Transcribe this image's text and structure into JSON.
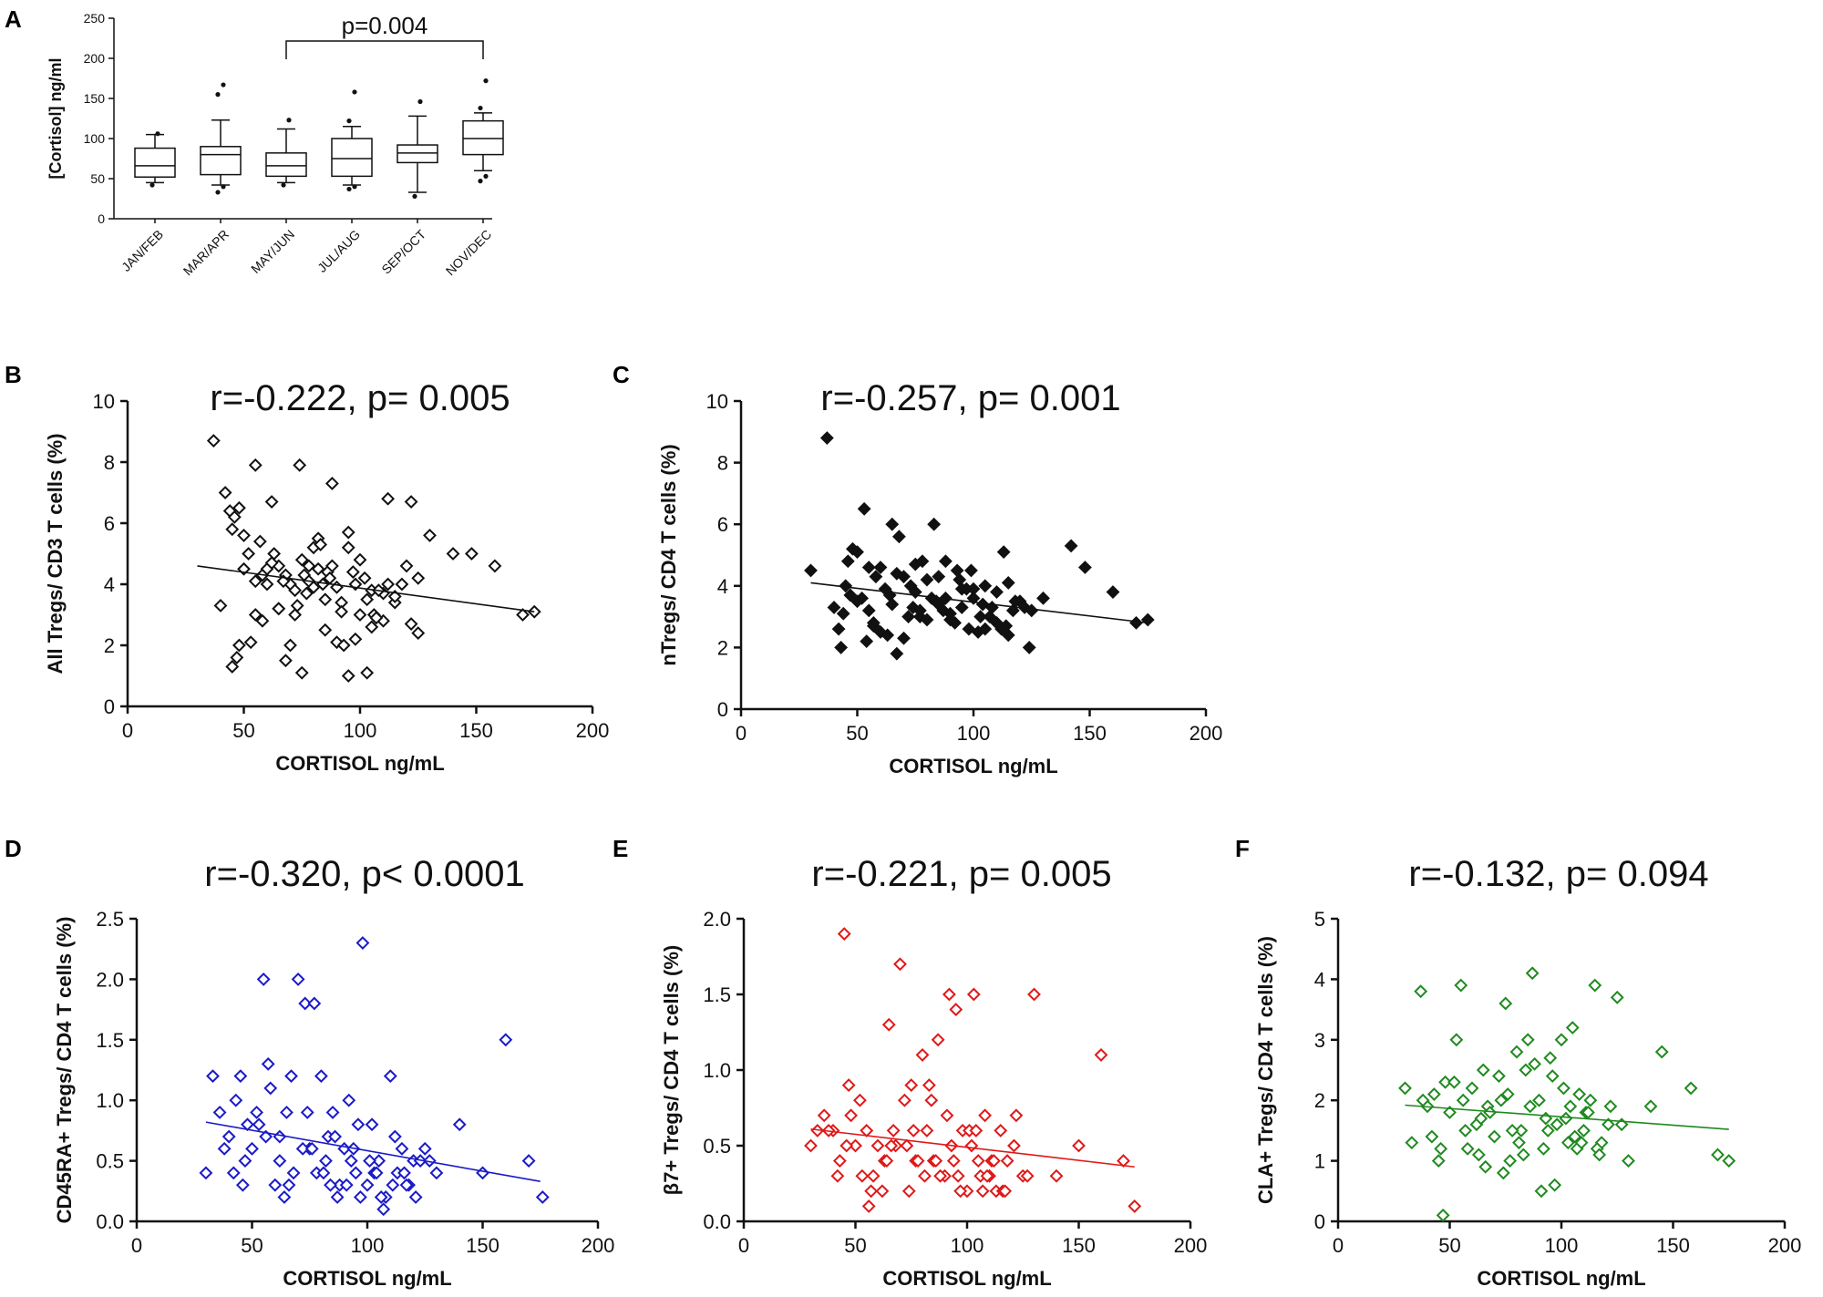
{
  "figure": {
    "panels": [
      "A",
      "B",
      "C",
      "D",
      "E",
      "F"
    ]
  },
  "chart_data": [
    {
      "panel": "A",
      "type": "box",
      "title": "",
      "xlabel": "",
      "ylabel": "[Cortisol] ng/ml",
      "ylim": [
        0,
        250
      ],
      "yticks": [
        0,
        50,
        100,
        150,
        200,
        250
      ],
      "categories": [
        "JAN/FEB",
        "MAR/APR",
        "MAY/JUN",
        "JUL/AUG",
        "SEP/OCT",
        "NOV/DEC"
      ],
      "boxes": [
        {
          "whisker_low": 45,
          "q1": 52,
          "median": 66,
          "q3": 88,
          "whisker_high": 105,
          "outliers": [
            42,
            106
          ]
        },
        {
          "whisker_low": 42,
          "q1": 55,
          "median": 80,
          "q3": 90,
          "whisker_high": 123,
          "outliers": [
            33,
            40,
            155,
            167
          ]
        },
        {
          "whisker_low": 45,
          "q1": 53,
          "median": 66,
          "q3": 82,
          "whisker_high": 112,
          "outliers": [
            42,
            123
          ]
        },
        {
          "whisker_low": 42,
          "q1": 53,
          "median": 75,
          "q3": 100,
          "whisker_high": 115,
          "outliers": [
            37,
            40,
            122,
            158
          ]
        },
        {
          "whisker_low": 33,
          "q1": 70,
          "median": 82,
          "q3": 92,
          "whisker_high": 128,
          "outliers": [
            28,
            146
          ]
        },
        {
          "whisker_low": 60,
          "q1": 80,
          "median": 100,
          "q3": 122,
          "whisker_high": 132,
          "outliers": [
            47,
            53,
            138,
            172
          ]
        }
      ],
      "annotation": {
        "text": "p=0.004",
        "from_category": "MAY/JUN",
        "to_category": "NOV/DEC"
      }
    },
    {
      "panel": "B",
      "type": "scatter",
      "title": "r=-0.222, p= 0.005",
      "xlabel": "CORTISOL ng/mL",
      "ylabel": "All Tregs/ CD3 T cells (%)",
      "xlim": [
        0,
        200
      ],
      "ylim": [
        0,
        10
      ],
      "xticks": [
        0,
        50,
        100,
        150,
        200
      ],
      "yticks": [
        0,
        2,
        4,
        6,
        8,
        10
      ],
      "marker": "open-diamond",
      "color": "#111111",
      "fit": {
        "x": [
          30,
          175
        ],
        "y": [
          4.6,
          3.1
        ]
      },
      "x": [
        37,
        42,
        44,
        46,
        48,
        50,
        52,
        55,
        58,
        60,
        62,
        65,
        68,
        70,
        72,
        74,
        76,
        78,
        80,
        82,
        84,
        86,
        88,
        90,
        92,
        95,
        98,
        100,
        103,
        106,
        110,
        112,
        115,
        118,
        122,
        125,
        130,
        140,
        148,
        158,
        170,
        175,
        45,
        50,
        55,
        60,
        65,
        70,
        75,
        80,
        85,
        90,
        95,
        100,
        105,
        110,
        115,
        120,
        125,
        40,
        47,
        53,
        58,
        63,
        68,
        73,
        78,
        83,
        88,
        93,
        98,
        103,
        108,
        45,
        55,
        65,
        75,
        85,
        95,
        105,
        57,
        67,
        77,
        87,
        97,
        107,
        48,
        62,
        72,
        82,
        92,
        102,
        112,
        122
      ],
      "y": [
        8.7,
        7.0,
        6.4,
        6.2,
        6.5,
        5.6,
        5.0,
        7.9,
        4.3,
        4.0,
        6.7,
        4.6,
        4.3,
        4.0,
        3.8,
        7.9,
        4.3,
        4.1,
        5.2,
        5.5,
        4.0,
        4.4,
        7.3,
        3.9,
        3.4,
        5.2,
        4.0,
        4.8,
        3.5,
        3.0,
        3.7,
        6.8,
        3.4,
        4.0,
        6.7,
        4.2,
        5.6,
        5.0,
        5.0,
        4.6,
        3.0,
        3.1,
        5.8,
        4.5,
        3.0,
        4.5,
        3.2,
        2.0,
        4.8,
        3.9,
        2.5,
        2.1,
        1.0,
        3.0,
        3.8,
        2.8,
        3.6,
        4.6,
        2.4,
        3.3,
        1.6,
        2.1,
        2.8,
        5.0,
        1.5,
        3.3,
        4.6,
        5.3,
        4.6,
        2.0,
        2.2,
        1.1,
        3.8,
        1.3,
        4.1,
        3.2,
        1.1,
        3.5,
        5.7,
        2.6,
        5.4,
        4.1,
        3.7,
        4.2,
        4.4,
        2.9,
        2.0,
        4.7,
        3.0,
        4.5,
        3.1,
        4.2,
        4.0,
        2.7
      ]
    },
    {
      "panel": "C",
      "type": "scatter",
      "title": "r=-0.257, p= 0.001",
      "xlabel": "CORTISOL ng/mL",
      "ylabel": "nTregs/ CD4 T cells (%)",
      "xlim": [
        0,
        200
      ],
      "ylim": [
        0,
        10
      ],
      "xticks": [
        0,
        50,
        100,
        150,
        200
      ],
      "yticks": [
        0,
        2,
        4,
        6,
        8,
        10
      ],
      "marker": "filled-diamond",
      "color": "#111111",
      "fit": {
        "x": [
          30,
          175
        ],
        "y": [
          4.1,
          2.8
        ]
      },
      "x": [
        30,
        37,
        40,
        43,
        46,
        48,
        50,
        53,
        55,
        57,
        60,
        62,
        65,
        67,
        68,
        70,
        73,
        75,
        77,
        80,
        82,
        83,
        85,
        88,
        90,
        93,
        95,
        98,
        100,
        103,
        105,
        108,
        110,
        113,
        115,
        118,
        122,
        125,
        130,
        142,
        148,
        160,
        170,
        175,
        45,
        50,
        55,
        60,
        65,
        70,
        75,
        80,
        85,
        90,
        95,
        100,
        105,
        110,
        115,
        120,
        42,
        52,
        58,
        63,
        72,
        78,
        88,
        92,
        97,
        102,
        107,
        112,
        117,
        44,
        54,
        64,
        74,
        84,
        94,
        104,
        114,
        124,
        47,
        57,
        67,
        77,
        87,
        99
      ],
      "y": [
        4.5,
        8.8,
        3.3,
        2.0,
        4.8,
        5.2,
        3.5,
        6.5,
        3.2,
        2.7,
        4.6,
        3.9,
        6.0,
        1.8,
        5.6,
        4.3,
        4.0,
        4.7,
        3.2,
        4.2,
        3.6,
        6.0,
        3.4,
        4.8,
        3.1,
        4.5,
        3.9,
        2.6,
        3.6,
        3.0,
        4.0,
        3.3,
        2.8,
        5.1,
        4.1,
        3.5,
        3.3,
        3.2,
        3.6,
        5.3,
        4.6,
        3.8,
        2.8,
        2.9,
        4.0,
        5.1,
        4.6,
        2.5,
        3.4,
        2.3,
        3.8,
        2.9,
        4.3,
        2.9,
        3.3,
        3.9,
        2.6,
        3.8,
        2.4,
        3.5,
        2.6,
        3.6,
        4.3,
        2.4,
        3.0,
        4.8,
        3.6,
        2.8,
        3.9,
        2.5,
        3.0,
        2.6,
        3.2,
        3.1,
        2.2,
        3.7,
        3.3,
        3.5,
        4.2,
        3.4,
        2.7,
        2.0,
        3.7,
        2.8,
        4.4,
        3.0,
        3.2,
        4.5
      ]
    },
    {
      "panel": "D",
      "type": "scatter",
      "title": "r=-0.320, p< 0.0001",
      "xlabel": "CORTISOL ng/mL",
      "ylabel": "CD45RA+ Tregs/ CD4 T cells (%)",
      "xlim": [
        0,
        200
      ],
      "ylim": [
        0,
        2.5
      ],
      "xticks": [
        0,
        50,
        100,
        150,
        200
      ],
      "yticks": [
        0.0,
        0.5,
        1.0,
        1.5,
        2.0,
        2.5
      ],
      "marker": "open-diamond",
      "color": "#1a1ac8",
      "fit": {
        "x": [
          30,
          175
        ],
        "y": [
          0.82,
          0.33
        ]
      },
      "x": [
        30,
        33,
        36,
        40,
        43,
        45,
        47,
        50,
        53,
        55,
        57,
        60,
        62,
        65,
        67,
        70,
        73,
        75,
        77,
        78,
        80,
        82,
        85,
        87,
        90,
        92,
        95,
        98,
        100,
        102,
        105,
        108,
        110,
        113,
        115,
        118,
        120,
        125,
        130,
        140,
        150,
        160,
        170,
        176,
        38,
        48,
        58,
        68,
        72,
        83,
        88,
        93,
        97,
        103,
        107,
        112,
        117,
        123,
        42,
        52,
        62,
        66,
        76,
        81,
        86,
        91,
        96,
        101,
        106,
        111,
        116,
        121,
        127,
        46,
        56,
        64,
        74,
        84,
        94,
        104
      ],
      "y": [
        0.4,
        1.2,
        0.9,
        0.7,
        1.0,
        1.2,
        0.5,
        0.6,
        0.8,
        2.0,
        1.3,
        0.3,
        0.7,
        0.9,
        1.2,
        2.0,
        1.8,
        0.6,
        1.8,
        0.4,
        1.2,
        0.5,
        0.9,
        0.2,
        0.6,
        1.0,
        0.4,
        2.3,
        0.3,
        0.8,
        0.5,
        0.2,
        1.2,
        0.4,
        0.6,
        0.3,
        0.5,
        0.6,
        0.4,
        0.8,
        0.4,
        1.5,
        0.5,
        0.2,
        0.6,
        0.8,
        1.1,
        0.4,
        0.6,
        0.7,
        0.3,
        0.5,
        0.2,
        0.4,
        0.1,
        0.7,
        0.3,
        0.5,
        0.4,
        0.9,
        0.5,
        0.3,
        0.6,
        0.4,
        0.7,
        0.3,
        0.8,
        0.5,
        0.2,
        0.3,
        0.4,
        0.2,
        0.5,
        0.3,
        0.7,
        0.2,
        0.9,
        0.3,
        0.6,
        0.4
      ]
    },
    {
      "panel": "E",
      "type": "scatter",
      "title": "r=-0.221, p= 0.005",
      "xlabel": "CORTISOL ng/mL",
      "ylabel": "β7+ Tregs/ CD4 T cells (%)",
      "xlim": [
        0,
        200
      ],
      "ylim": [
        0,
        2.0
      ],
      "xticks": [
        0,
        50,
        100,
        150,
        200
      ],
      "yticks": [
        0.0,
        0.5,
        1.0,
        1.5,
        2.0
      ],
      "marker": "open-diamond",
      "color": "#e01818",
      "fit": {
        "x": [
          30,
          175
        ],
        "y": [
          0.61,
          0.36
        ]
      },
      "x": [
        30,
        33,
        36,
        40,
        43,
        45,
        47,
        50,
        53,
        55,
        57,
        60,
        63,
        65,
        67,
        70,
        73,
        75,
        77,
        80,
        82,
        85,
        87,
        90,
        92,
        95,
        98,
        100,
        103,
        105,
        108,
        110,
        113,
        115,
        118,
        122,
        125,
        130,
        140,
        150,
        160,
        170,
        175,
        38,
        48,
        58,
        68,
        72,
        78,
        83,
        88,
        93,
        97,
        101,
        106,
        111,
        116,
        121,
        42,
        52,
        62,
        66,
        76,
        81,
        86,
        91,
        96,
        102,
        107,
        112,
        117,
        127,
        46,
        56,
        64,
        74,
        84,
        94,
        104,
        109
      ],
      "y": [
        0.5,
        0.6,
        0.7,
        0.6,
        0.4,
        1.9,
        0.9,
        0.5,
        0.3,
        0.6,
        0.2,
        0.5,
        0.4,
        1.3,
        0.6,
        1.7,
        0.5,
        0.9,
        0.4,
        1.1,
        0.6,
        0.4,
        1.2,
        0.3,
        1.5,
        1.4,
        0.6,
        0.2,
        1.5,
        0.4,
        0.7,
        0.3,
        0.2,
        0.6,
        0.4,
        0.7,
        0.3,
        1.5,
        0.3,
        0.5,
        1.1,
        0.4,
        0.1,
        0.6,
        0.7,
        0.3,
        0.5,
        0.8,
        0.4,
        0.9,
        0.3,
        0.5,
        0.2,
        0.6,
        0.3,
        0.4,
        0.2,
        0.5,
        0.3,
        0.8,
        0.2,
        0.5,
        0.6,
        0.3,
        0.4,
        0.7,
        0.3,
        0.5,
        0.2,
        0.4,
        0.2,
        0.3,
        0.5,
        0.1,
        0.4,
        0.2,
        0.8,
        0.4,
        0.6,
        0.3
      ]
    },
    {
      "panel": "F",
      "type": "scatter",
      "title": "r=-0.132, p= 0.094",
      "xlabel": "CORTISOL ng/mL",
      "ylabel": "CLA+ Tregs/ CD4 T cells (%)",
      "xlim": [
        0,
        200
      ],
      "ylim": [
        0,
        5
      ],
      "xticks": [
        0,
        50,
        100,
        150,
        200
      ],
      "yticks": [
        0,
        1,
        2,
        3,
        4,
        5
      ],
      "marker": "open-diamond",
      "color": "#1f8a1f",
      "fit": {
        "x": [
          30,
          175
        ],
        "y": [
          1.92,
          1.52
        ]
      },
      "x": [
        30,
        33,
        37,
        40,
        43,
        45,
        47,
        50,
        53,
        55,
        57,
        60,
        63,
        65,
        67,
        70,
        73,
        75,
        77,
        80,
        82,
        85,
        87,
        90,
        92,
        95,
        98,
        100,
        103,
        105,
        108,
        110,
        113,
        115,
        118,
        122,
        125,
        130,
        140,
        145,
        158,
        170,
        175,
        38,
        48,
        58,
        68,
        72,
        78,
        83,
        88,
        93,
        97,
        101,
        106,
        111,
        116,
        121,
        42,
        52,
        62,
        66,
        76,
        81,
        86,
        91,
        96,
        102,
        107,
        112,
        117,
        127,
        46,
        56,
        64,
        74,
        84,
        94,
        104,
        109
      ],
      "y": [
        2.2,
        1.3,
        3.8,
        1.9,
        2.1,
        1.0,
        0.1,
        1.8,
        3.0,
        3.9,
        1.5,
        2.2,
        1.1,
        2.5,
        1.9,
        1.4,
        2.0,
        3.6,
        1.0,
        2.8,
        1.5,
        3.0,
        4.1,
        2.0,
        1.2,
        2.7,
        1.6,
        3.0,
        1.3,
        3.2,
        2.1,
        1.5,
        2.0,
        3.9,
        1.3,
        1.9,
        3.7,
        1.0,
        1.9,
        2.8,
        2.2,
        1.1,
        1.0,
        2.0,
        2.3,
        1.2,
        1.8,
        2.4,
        1.5,
        1.1,
        2.6,
        1.7,
        0.6,
        2.2,
        1.4,
        1.8,
        1.2,
        1.6,
        1.4,
        2.3,
        1.6,
        0.9,
        2.1,
        1.3,
        1.9,
        0.5,
        2.4,
        1.7,
        1.2,
        1.8,
        1.1,
        1.6,
        1.2,
        2.0,
        1.7,
        0.8,
        2.5,
        1.5,
        1.9,
        1.3
      ]
    }
  ]
}
